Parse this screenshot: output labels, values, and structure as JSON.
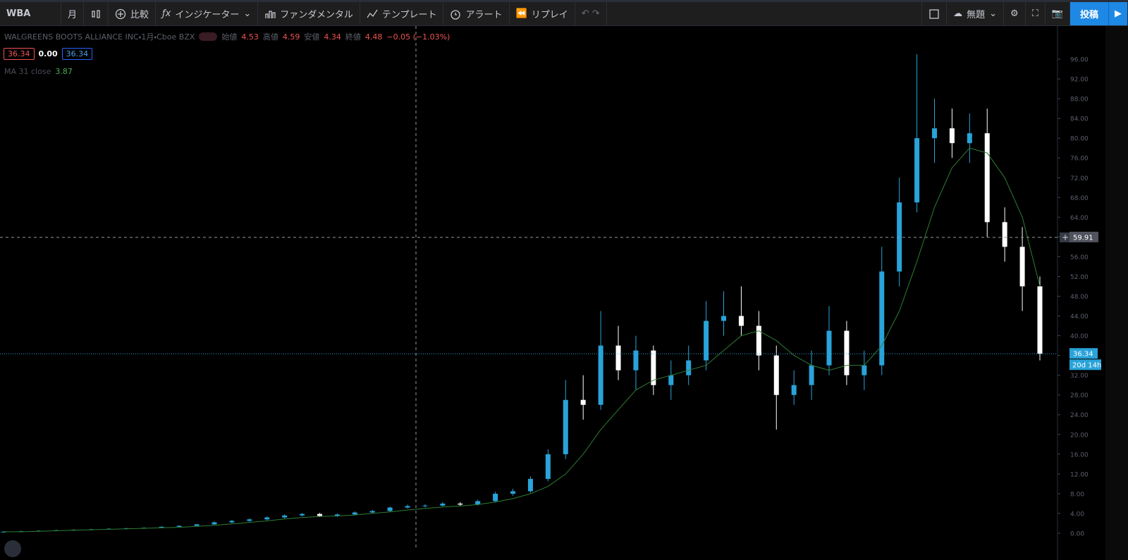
{
  "toolbar": {
    "symbol": "WBA",
    "interval": "月",
    "compare": "比較",
    "indicators": "インジケーター",
    "fundamentals": "ファンダメンタル",
    "templates": "テンプレート",
    "alert": "アラート",
    "replay": "リプレイ",
    "layout": "無題",
    "publish": "投稿"
  },
  "legend": {
    "title": "WALGREENS BOOTS ALLIANCE INC・1月・Cboe BZX",
    "o_label": "始値",
    "o": 4.53,
    "h_label": "高値",
    "h": 4.59,
    "l_label": "安値",
    "l": 4.34,
    "c_label": "終値",
    "c": 4.48,
    "change": "−0.05 (−1.03%)",
    "bid": 36.34,
    "spread": "0.00",
    "ask": 36.34,
    "ma_value": 3.87
  },
  "chart_data": {
    "type": "candlestick",
    "up_color": "#29a3d9",
    "down_color": "#ffffff",
    "open": [
      0.3,
      0.3,
      0.4,
      0.5,
      0.6,
      0.7,
      0.8,
      0.9,
      1.0,
      1.1,
      1.3,
      1.5,
      1.8,
      2.2,
      2.5,
      2.8,
      3.2,
      3.6,
      3.9,
      3.5,
      3.8,
      4.2,
      4.5,
      5.2,
      5.5,
      5.6,
      6.0,
      5.8,
      6.5,
      8.0,
      8.5,
      11,
      16,
      27,
      26,
      38,
      33,
      37,
      30,
      32,
      35,
      43,
      44,
      42,
      36,
      28,
      30,
      34,
      41,
      32,
      34,
      53,
      67,
      80,
      82,
      79,
      81,
      63,
      58,
      50
    ],
    "high": [
      0.4,
      0.5,
      0.6,
      0.7,
      0.8,
      0.9,
      1.0,
      1.1,
      1.2,
      1.4,
      1.6,
      1.9,
      2.4,
      2.7,
      3.0,
      3.4,
      3.8,
      4.1,
      4.1,
      4.0,
      4.4,
      4.7,
      5.4,
      5.8,
      5.9,
      6.3,
      6.3,
      6.8,
      8.4,
      9.0,
      11.5,
      17,
      31,
      32,
      45,
      42,
      40,
      38,
      35,
      38,
      47,
      49,
      50,
      45,
      38,
      33,
      37,
      46,
      43,
      37,
      58,
      72,
      97,
      88,
      86,
      85,
      86,
      66,
      62,
      52
    ],
    "low": [
      0.2,
      0.2,
      0.3,
      0.4,
      0.5,
      0.6,
      0.7,
      0.8,
      0.9,
      1.0,
      1.2,
      1.4,
      1.7,
      2.0,
      2.3,
      2.6,
      3.0,
      3.4,
      3.3,
      3.3,
      3.6,
      4.0,
      4.3,
      5.0,
      5.2,
      5.4,
      5.5,
      5.6,
      6.2,
      7.6,
      8.2,
      10.5,
      15,
      23,
      25,
      31,
      29,
      28,
      27,
      30,
      33,
      40,
      40,
      33,
      21,
      26,
      27,
      32,
      30,
      29,
      32,
      50,
      65,
      75,
      76,
      75,
      60,
      55,
      45,
      35
    ],
    "close": [
      0.3,
      0.4,
      0.5,
      0.6,
      0.7,
      0.8,
      0.9,
      1.0,
      1.1,
      1.3,
      1.5,
      1.8,
      2.2,
      2.5,
      2.8,
      3.2,
      3.6,
      3.9,
      3.5,
      3.8,
      4.2,
      4.5,
      5.2,
      5.5,
      5.6,
      6.0,
      5.8,
      6.5,
      8.0,
      8.5,
      11,
      16,
      27,
      26,
      38,
      33,
      37,
      30,
      32,
      35,
      43,
      44,
      42,
      36,
      28,
      30,
      34,
      41,
      32,
      34,
      53,
      67,
      80,
      82,
      79,
      81,
      63,
      58,
      50,
      36.34
    ],
    "ma": {
      "name": "MA 31 close",
      "color": "#2e7d32",
      "values": [
        0.3,
        0.3,
        0.4,
        0.5,
        0.6,
        0.7,
        0.8,
        0.9,
        1.0,
        1.1,
        1.2,
        1.4,
        1.6,
        1.9,
        2.2,
        2.5,
        2.9,
        3.2,
        3.4,
        3.5,
        3.7,
        4.0,
        4.3,
        4.7,
        5.0,
        5.3,
        5.5,
        5.8,
        6.3,
        7.0,
        8.0,
        9.5,
        12,
        16,
        21,
        25,
        29,
        31,
        32,
        33,
        34,
        37,
        40,
        41,
        39,
        36,
        34,
        33,
        34,
        34,
        38,
        45,
        55,
        66,
        74,
        78,
        77,
        72,
        64,
        50
      ]
    },
    "ylim": [
      -3.14,
      102.28
    ],
    "yticks": [
      {
        "value": 0,
        "label": "0.00"
      },
      {
        "value": 4,
        "label": "4.00"
      },
      {
        "value": 8,
        "label": "8.00"
      },
      {
        "value": 12,
        "label": "12.00"
      },
      {
        "value": 16,
        "label": "16.00"
      },
      {
        "value": 20,
        "label": "20.00"
      },
      {
        "value": 24,
        "label": "24.00"
      },
      {
        "value": 28,
        "label": "28.00"
      },
      {
        "value": 32,
        "label": "32.00"
      },
      {
        "value": 36,
        "label": "36.00"
      },
      {
        "value": 40,
        "label": "40.00"
      },
      {
        "value": 44,
        "label": "44.00"
      },
      {
        "value": 48,
        "label": "48.00"
      },
      {
        "value": 52,
        "label": "52.00"
      },
      {
        "value": 56,
        "label": "56.00"
      },
      {
        "value": 60,
        "label": "60.00"
      },
      {
        "value": 64,
        "label": "64.00"
      },
      {
        "value": 68,
        "label": "68.00"
      },
      {
        "value": 72,
        "label": "72.00"
      },
      {
        "value": 76,
        "label": "76.00"
      },
      {
        "value": 80,
        "label": "80.00"
      },
      {
        "value": 84,
        "label": "84.00"
      },
      {
        "value": 88,
        "label": "88.00"
      },
      {
        "value": 92,
        "label": "92.00"
      },
      {
        "value": 96,
        "label": "96.00"
      }
    ],
    "last_price": 36.34,
    "countdown": "20d 14h",
    "crosshair_price": 59.91
  }
}
